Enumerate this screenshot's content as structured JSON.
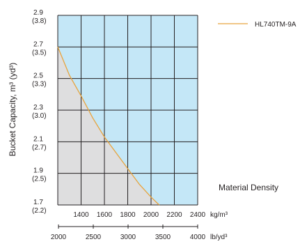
{
  "chart_data": {
    "type": "area",
    "ylabel": "Bucket Capacity, m³ (yd³)",
    "y_ticks": [
      {
        "value": 2.9,
        "label": "2.9",
        "sub": "(3.8)"
      },
      {
        "value": 2.7,
        "label": "2.7",
        "sub": "(3.5)"
      },
      {
        "value": 2.5,
        "label": "2.5",
        "sub": "(3.3)"
      },
      {
        "value": 2.3,
        "label": "2.3",
        "sub": "(3.0)"
      },
      {
        "value": 2.1,
        "label": "2.1",
        "sub": "(2.7)"
      },
      {
        "value": 1.9,
        "label": "1.9",
        "sub": "(2.5)"
      },
      {
        "value": 1.7,
        "label": "1.7",
        "sub": "(2.2)"
      }
    ],
    "ylim": [
      1.7,
      2.9
    ],
    "x_ticks": [
      "1400",
      "1600",
      "1800",
      "2000",
      "2200",
      "2400"
    ],
    "x_tick_values": [
      1400,
      1600,
      1800,
      2000,
      2200,
      2400
    ],
    "xlim": [
      1200,
      2400
    ],
    "x_unit": "kg/m³",
    "x2_ticks": [
      "2000",
      "2500",
      "3000",
      "3500",
      "4000"
    ],
    "x2_unit": "lb/yd³",
    "series": [
      {
        "name": "HL740TM-9A",
        "color": "#e8a33d",
        "x": [
          1200,
          1300,
          1400,
          1500,
          1600,
          1700,
          1800,
          1900,
          2000,
          2070
        ],
        "y": [
          2.7,
          2.52,
          2.39,
          2.25,
          2.13,
          2.03,
          1.93,
          1.83,
          1.75,
          1.7
        ]
      }
    ],
    "annotation": "Material Density",
    "grid": true,
    "legend_position": "top-right",
    "colors": {
      "above": "#c4e7f7",
      "below": "#dededf",
      "grid": "#231f20"
    }
  }
}
